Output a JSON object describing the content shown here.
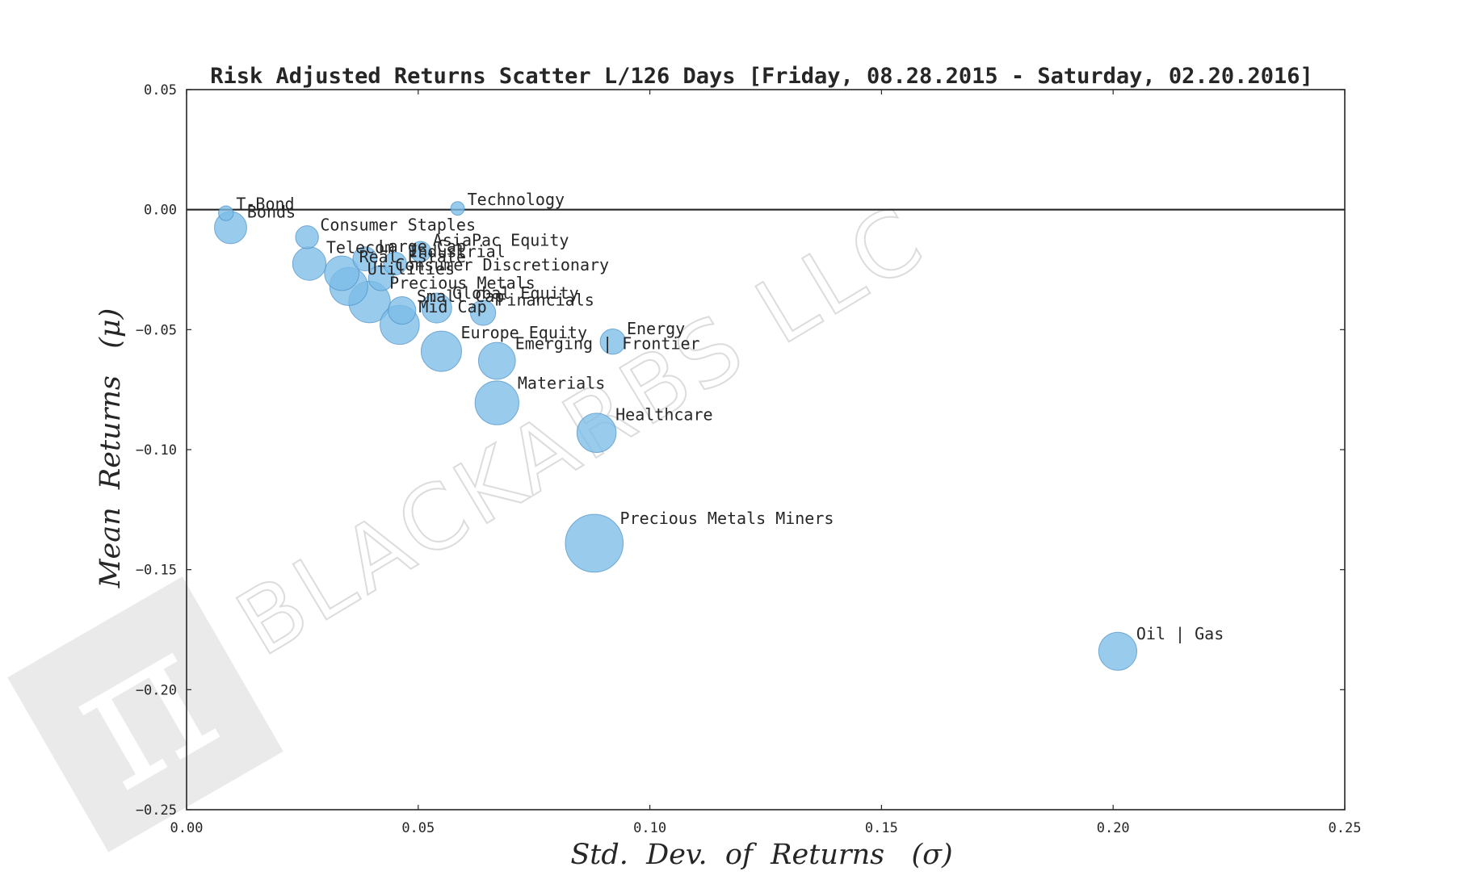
{
  "watermark": {
    "text": "BLACKARBS LLC",
    "logo_glyph": "π",
    "color": "#dcdcdc"
  },
  "colors": {
    "bubble_fill": "#7cbce8",
    "bubble_stroke": "#4a8fc4",
    "axis": "#262626"
  },
  "chart_data": {
    "type": "scatter",
    "title": "Risk Adjusted Returns Scatter L/126 Days [Friday, 08.28.2015 - Saturday, 02.20.2016]",
    "xlabel": "Std.  Dev.  of  Returns   (σ)",
    "ylabel": "Mean  Returns   (μ)",
    "xlim": [
      0.0,
      0.25
    ],
    "ylim": [
      -0.25,
      0.05
    ],
    "xticks": [
      "0.00",
      "0.05",
      "0.10",
      "0.15",
      "0.20",
      "0.25"
    ],
    "yticks": [
      "0.05",
      "0.00",
      "−0.05",
      "−0.10",
      "−0.15",
      "−0.20",
      "−0.25"
    ],
    "hline_y": 0.0,
    "grid": false,
    "points": [
      {
        "label": "T-Bond",
        "x": 0.0085,
        "y": -0.0015,
        "size": 0.3
      },
      {
        "label": "Bonds",
        "x": 0.0095,
        "y": -0.0075,
        "size": 1.8
      },
      {
        "label": "Technology",
        "x": 0.0585,
        "y": 0.0005,
        "size": 0.2
      },
      {
        "label": "Consumer Staples",
        "x": 0.026,
        "y": -0.0115,
        "size": 1.0
      },
      {
        "label": "AsiaPac Equity",
        "x": 0.0505,
        "y": -0.0175,
        "size": 0.8
      },
      {
        "label": "Large Cap",
        "x": 0.0385,
        "y": -0.0205,
        "size": 1.1
      },
      {
        "label": "Industrial",
        "x": 0.045,
        "y": -0.0225,
        "size": 1.0
      },
      {
        "label": "Telecom",
        "x": 0.0265,
        "y": -0.0225,
        "size": 1.9
      },
      {
        "label": "Real Estate",
        "x": 0.0335,
        "y": -0.0265,
        "size": 2.0
      },
      {
        "label": "Consumer Discretionary",
        "x": 0.042,
        "y": -0.0285,
        "size": 1.2
      },
      {
        "label": "Utilities",
        "x": 0.035,
        "y": -0.032,
        "size": 2.3
      },
      {
        "label": "Precious Metals",
        "x": 0.0395,
        "y": -0.0385,
        "size": 2.6
      },
      {
        "label": "Global Equity",
        "x": 0.054,
        "y": -0.041,
        "size": 1.6
      },
      {
        "label": "Small Cap",
        "x": 0.0465,
        "y": -0.042,
        "size": 1.4
      },
      {
        "label": "Financials",
        "x": 0.064,
        "y": -0.043,
        "size": 1.2
      },
      {
        "label": "Mid Cap",
        "x": 0.046,
        "y": -0.048,
        "size": 2.4
      },
      {
        "label": "Energy",
        "x": 0.092,
        "y": -0.055,
        "size": 1.2
      },
      {
        "label": "Europe Equity",
        "x": 0.055,
        "y": -0.059,
        "size": 2.5
      },
      {
        "label": "Emerging | Frontier",
        "x": 0.067,
        "y": -0.063,
        "size": 2.2
      },
      {
        "label": "Materials",
        "x": 0.067,
        "y": -0.0805,
        "size": 2.8
      },
      {
        "label": "Healthcare",
        "x": 0.0885,
        "y": -0.093,
        "size": 2.4
      },
      {
        "label": "Precious Metals Miners",
        "x": 0.088,
        "y": -0.139,
        "size": 4.0
      },
      {
        "label": "Oil | Gas",
        "x": 0.201,
        "y": -0.184,
        "size": 2.3
      }
    ]
  }
}
